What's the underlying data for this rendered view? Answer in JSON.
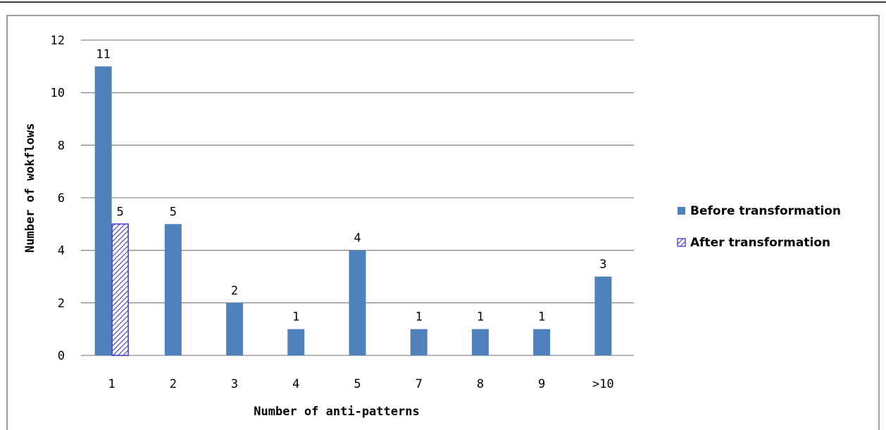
{
  "chart_data": {
    "type": "bar",
    "title": "",
    "xlabel": "Number of anti-patterns",
    "ylabel": "Number of wokflows",
    "categories": [
      "1",
      "2",
      "3",
      "4",
      "5",
      "7",
      "8",
      "9",
      ">10"
    ],
    "ylim": [
      0,
      12
    ],
    "yticks": [
      "0",
      "2",
      "4",
      "6",
      "8",
      "10",
      "12"
    ],
    "grid": "horizontal",
    "legend_position": "right",
    "series": [
      {
        "name": "Before transformation",
        "color": "#4f81bd",
        "fill": "solid",
        "values": [
          11,
          5,
          2,
          1,
          4,
          1,
          1,
          1,
          3
        ],
        "labels": [
          "11",
          "5",
          "2",
          "1",
          "4",
          "1",
          "1",
          "1",
          "3"
        ]
      },
      {
        "name": "After transformation",
        "color": "#3b3bd6",
        "fill": "hatched",
        "values": [
          5,
          null,
          null,
          null,
          null,
          null,
          null,
          null,
          null
        ],
        "labels": [
          "5",
          "",
          "",
          "",
          "",
          "",
          "",
          "",
          ""
        ]
      }
    ]
  }
}
